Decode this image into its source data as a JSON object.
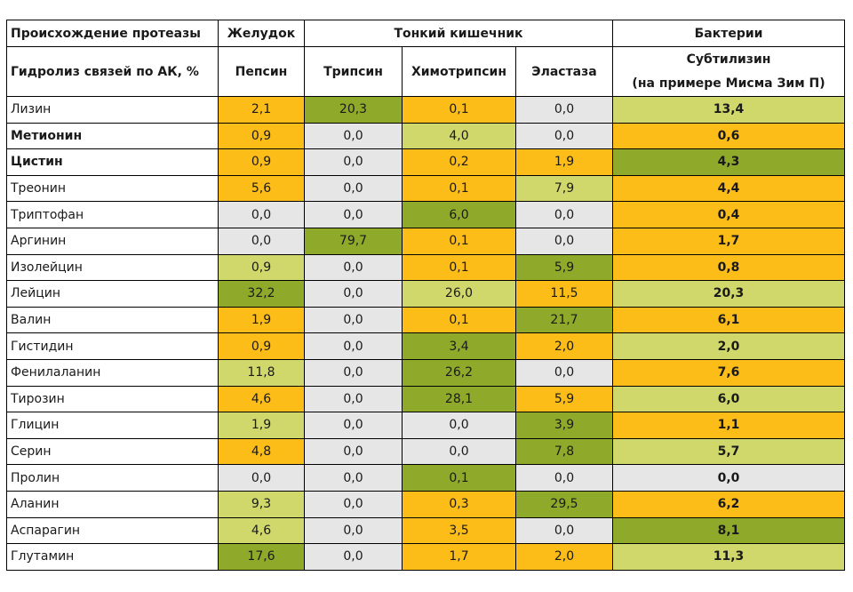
{
  "header": {
    "origin_label": "Происхождение протеазы",
    "stomach": "Желудок",
    "small_intestine": "Тонкий кишечник",
    "bacteria": "Бактерии",
    "hydrolysis_label": "Гидролиз связей по АК, %",
    "columns": [
      "Пепсин",
      "Трипсин",
      "Химотрипсин",
      "Эластаза"
    ],
    "subtilisin_line1": "Субтилизин",
    "subtilisin_line2": "(на примере Мисма Зим П)"
  },
  "colors": {
    "o": "#fdbd18",
    "g": "#8fa92a",
    "l": "#d0d86b",
    "w": "#e6e6e6"
  },
  "rows": [
    {
      "name": "Лизин",
      "bold": false,
      "values": [
        "2,1",
        "20,3",
        "0,1",
        "0,0",
        "13,4"
      ],
      "colors": [
        "o",
        "g",
        "o",
        "w",
        "l"
      ]
    },
    {
      "name": "Метионин",
      "bold": true,
      "values": [
        "0,9",
        "0,0",
        "4,0",
        "0,0",
        "0,6"
      ],
      "colors": [
        "o",
        "w",
        "l",
        "w",
        "o"
      ]
    },
    {
      "name": "Цистин",
      "bold": true,
      "values": [
        "0,9",
        "0,0",
        "0,2",
        "1,9",
        "4,3"
      ],
      "colors": [
        "o",
        "w",
        "o",
        "o",
        "g"
      ]
    },
    {
      "name": "Треонин",
      "bold": false,
      "values": [
        "5,6",
        "0,0",
        "0,1",
        "7,9",
        "4,4"
      ],
      "colors": [
        "o",
        "w",
        "o",
        "l",
        "o"
      ]
    },
    {
      "name": "Триптофан",
      "bold": false,
      "values": [
        "0,0",
        "0,0",
        "6,0",
        "0,0",
        "0,4"
      ],
      "colors": [
        "w",
        "w",
        "g",
        "w",
        "o"
      ]
    },
    {
      "name": "Аргинин",
      "bold": false,
      "values": [
        "0,0",
        "79,7",
        "0,1",
        "0,0",
        "1,7"
      ],
      "colors": [
        "w",
        "g",
        "o",
        "w",
        "o"
      ]
    },
    {
      "name": "Изолейцин",
      "bold": false,
      "values": [
        "0,9",
        "0,0",
        "0,1",
        "5,9",
        "0,8"
      ],
      "colors": [
        "l",
        "w",
        "o",
        "g",
        "o"
      ]
    },
    {
      "name": "Лейцин",
      "bold": false,
      "values": [
        "32,2",
        "0,0",
        "26,0",
        "11,5",
        "20,3"
      ],
      "colors": [
        "g",
        "w",
        "l",
        "o",
        "l"
      ]
    },
    {
      "name": "Валин",
      "bold": false,
      "values": [
        "1,9",
        "0,0",
        "0,1",
        "21,7",
        "6,1"
      ],
      "colors": [
        "o",
        "w",
        "o",
        "g",
        "o"
      ]
    },
    {
      "name": "Гистидин",
      "bold": false,
      "values": [
        "0,9",
        "0,0",
        "3,4",
        "2,0",
        "2,0"
      ],
      "colors": [
        "o",
        "w",
        "g",
        "o",
        "l"
      ]
    },
    {
      "name": "Фенилаланин",
      "bold": false,
      "values": [
        "11,8",
        "0,0",
        "26,2",
        "0,0",
        "7,6"
      ],
      "colors": [
        "l",
        "w",
        "g",
        "w",
        "o"
      ]
    },
    {
      "name": "Тирозин",
      "bold": false,
      "values": [
        "4,6",
        "0,0",
        "28,1",
        "5,9",
        "6,0"
      ],
      "colors": [
        "o",
        "w",
        "g",
        "o",
        "l"
      ]
    },
    {
      "name": "Глицин",
      "bold": false,
      "values": [
        "1,9",
        "0,0",
        "0,0",
        "3,9",
        "1,1"
      ],
      "colors": [
        "l",
        "w",
        "w",
        "g",
        "o"
      ]
    },
    {
      "name": "Серин",
      "bold": false,
      "values": [
        "4,8",
        "0,0",
        "0,0",
        "7,8",
        "5,7"
      ],
      "colors": [
        "o",
        "w",
        "w",
        "g",
        "l"
      ]
    },
    {
      "name": "Пролин",
      "bold": false,
      "values": [
        "0,0",
        "0,0",
        "0,1",
        "0,0",
        "0,0"
      ],
      "colors": [
        "w",
        "w",
        "g",
        "w",
        "w"
      ]
    },
    {
      "name": "Аланин",
      "bold": false,
      "values": [
        "9,3",
        "0,0",
        "0,3",
        "29,5",
        "6,2"
      ],
      "colors": [
        "l",
        "w",
        "o",
        "g",
        "o"
      ]
    },
    {
      "name": "Аспарагин",
      "bold": false,
      "values": [
        "4,6",
        "0,0",
        "3,5",
        "0,0",
        "8,1"
      ],
      "colors": [
        "l",
        "w",
        "o",
        "w",
        "g"
      ]
    },
    {
      "name": "Глутамин",
      "bold": false,
      "values": [
        "17,6",
        "0,0",
        "1,7",
        "2,0",
        "11,3"
      ],
      "colors": [
        "g",
        "w",
        "o",
        "o",
        "l"
      ]
    }
  ]
}
